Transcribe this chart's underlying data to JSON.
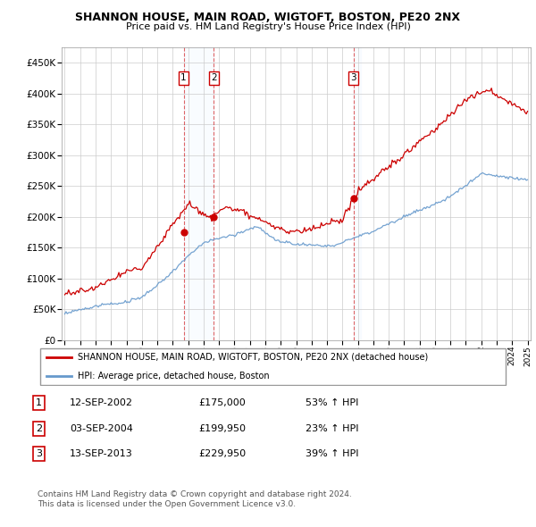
{
  "title": "SHANNON HOUSE, MAIN ROAD, WIGTOFT, BOSTON, PE20 2NX",
  "subtitle": "Price paid vs. HM Land Registry's House Price Index (HPI)",
  "sale_dates_num": [
    2002.708,
    2004.671,
    2013.708
  ],
  "sale_prices": [
    175000,
    199950,
    229950
  ],
  "sale_labels": [
    "1",
    "2",
    "3"
  ],
  "legend_house": "SHANNON HOUSE, MAIN ROAD, WIGTOFT, BOSTON, PE20 2NX (detached house)",
  "legend_hpi": "HPI: Average price, detached house, Boston",
  "table_rows": [
    [
      "1",
      "12-SEP-2002",
      "£175,000",
      "53% ↑ HPI"
    ],
    [
      "2",
      "03-SEP-2004",
      "£199,950",
      "23% ↑ HPI"
    ],
    [
      "3",
      "13-SEP-2013",
      "£229,950",
      "39% ↑ HPI"
    ]
  ],
  "footnote1": "Contains HM Land Registry data © Crown copyright and database right 2024.",
  "footnote2": "This data is licensed under the Open Government Licence v3.0.",
  "house_color": "#cc0000",
  "hpi_color": "#6699cc",
  "shade_color": "#ddeeff",
  "ylim": [
    0,
    475000
  ],
  "yticks": [
    0,
    50000,
    100000,
    150000,
    200000,
    250000,
    300000,
    350000,
    400000,
    450000
  ],
  "ytick_labels": [
    "£0",
    "£50K",
    "£100K",
    "£150K",
    "£200K",
    "£250K",
    "£300K",
    "£350K",
    "£400K",
    "£450K"
  ],
  "start_year": 1995,
  "end_year": 2025
}
